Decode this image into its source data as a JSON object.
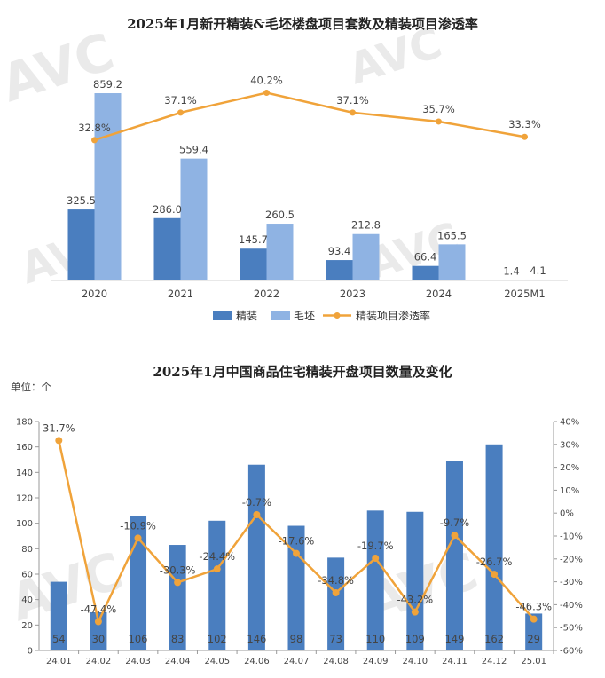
{
  "colors": {
    "jingzhuang": "#4a7ebf",
    "maopi": "#8fb3e3",
    "rate": "#f0a33a",
    "bar2": "#4a7ebf"
  },
  "chart_data": [
    {
      "type": "bar",
      "title": "2025年1月新开精装&毛坯楼盘项目套数及精装项目渗透率",
      "categories": [
        "2020",
        "2021",
        "2022",
        "2023",
        "2024",
        "2025M1"
      ],
      "series": [
        {
          "name": "精装",
          "type": "bar",
          "values": [
            325.5,
            286.0,
            145.7,
            93.4,
            66.4,
            1.4
          ],
          "labels": [
            "325.5",
            "286.0",
            "145.7",
            "93.4",
            "66.4",
            "1.4"
          ]
        },
        {
          "name": "毛坯",
          "type": "bar",
          "values": [
            859.2,
            559.4,
            260.5,
            212.8,
            165.5,
            4.1
          ],
          "labels": [
            "859.2",
            "559.4",
            "260.5",
            "212.8",
            "165.5",
            "4.1"
          ]
        },
        {
          "name": "精装项目渗透率",
          "type": "line",
          "values": [
            32.8,
            37.1,
            40.2,
            37.1,
            35.7,
            33.3
          ],
          "labels": [
            "32.8%",
            "37.1%",
            "40.2%",
            "37.1%",
            "35.7%",
            "33.3%"
          ]
        }
      ],
      "ylim": [
        0,
        900
      ],
      "ylim_right": [
        0,
        45
      ],
      "legend": "bottom"
    },
    {
      "type": "bar",
      "title": "2025年1月中国商品住宅精装开盘项目数量及变化",
      "unit_label": "单位：个",
      "categories": [
        "24.01",
        "24.02",
        "24.03",
        "24.04",
        "24.05",
        "24.06",
        "24.07",
        "24.08",
        "24.09",
        "24.10",
        "24.11",
        "24.12",
        "25.01"
      ],
      "series": [
        {
          "type": "bar",
          "values": [
            54,
            30,
            106,
            83,
            102,
            146,
            98,
            73,
            110,
            109,
            149,
            162,
            29
          ],
          "labels": [
            "54",
            "30",
            "106",
            "83",
            "102",
            "146",
            "98",
            "73",
            "110",
            "109",
            "149",
            "162",
            "29"
          ]
        },
        {
          "type": "line",
          "values": [
            31.7,
            -47.4,
            -10.9,
            -30.3,
            -24.4,
            -0.7,
            -17.6,
            -34.8,
            -19.7,
            -43.2,
            -9.7,
            -26.7,
            -46.3
          ],
          "labels": [
            "31.7%",
            "-47.4%",
            "-10.9%",
            "-30.3%",
            "-24.4%",
            "-0.7%",
            "-17.6%",
            "-34.8%",
            "-19.7%",
            "-43.2%",
            "-9.7%",
            "-26.7%",
            "-46.3%"
          ]
        }
      ],
      "ylim": [
        0,
        180
      ],
      "yticks": [
        "0",
        "20",
        "40",
        "60",
        "80",
        "100",
        "120",
        "140",
        "160",
        "180"
      ],
      "ylim_right": [
        -60,
        40
      ],
      "yticks_right": [
        "-60%",
        "-50%",
        "-40%",
        "-30%",
        "-20%",
        "-10%",
        "0%",
        "10%",
        "20%",
        "30%",
        "40%"
      ]
    }
  ]
}
